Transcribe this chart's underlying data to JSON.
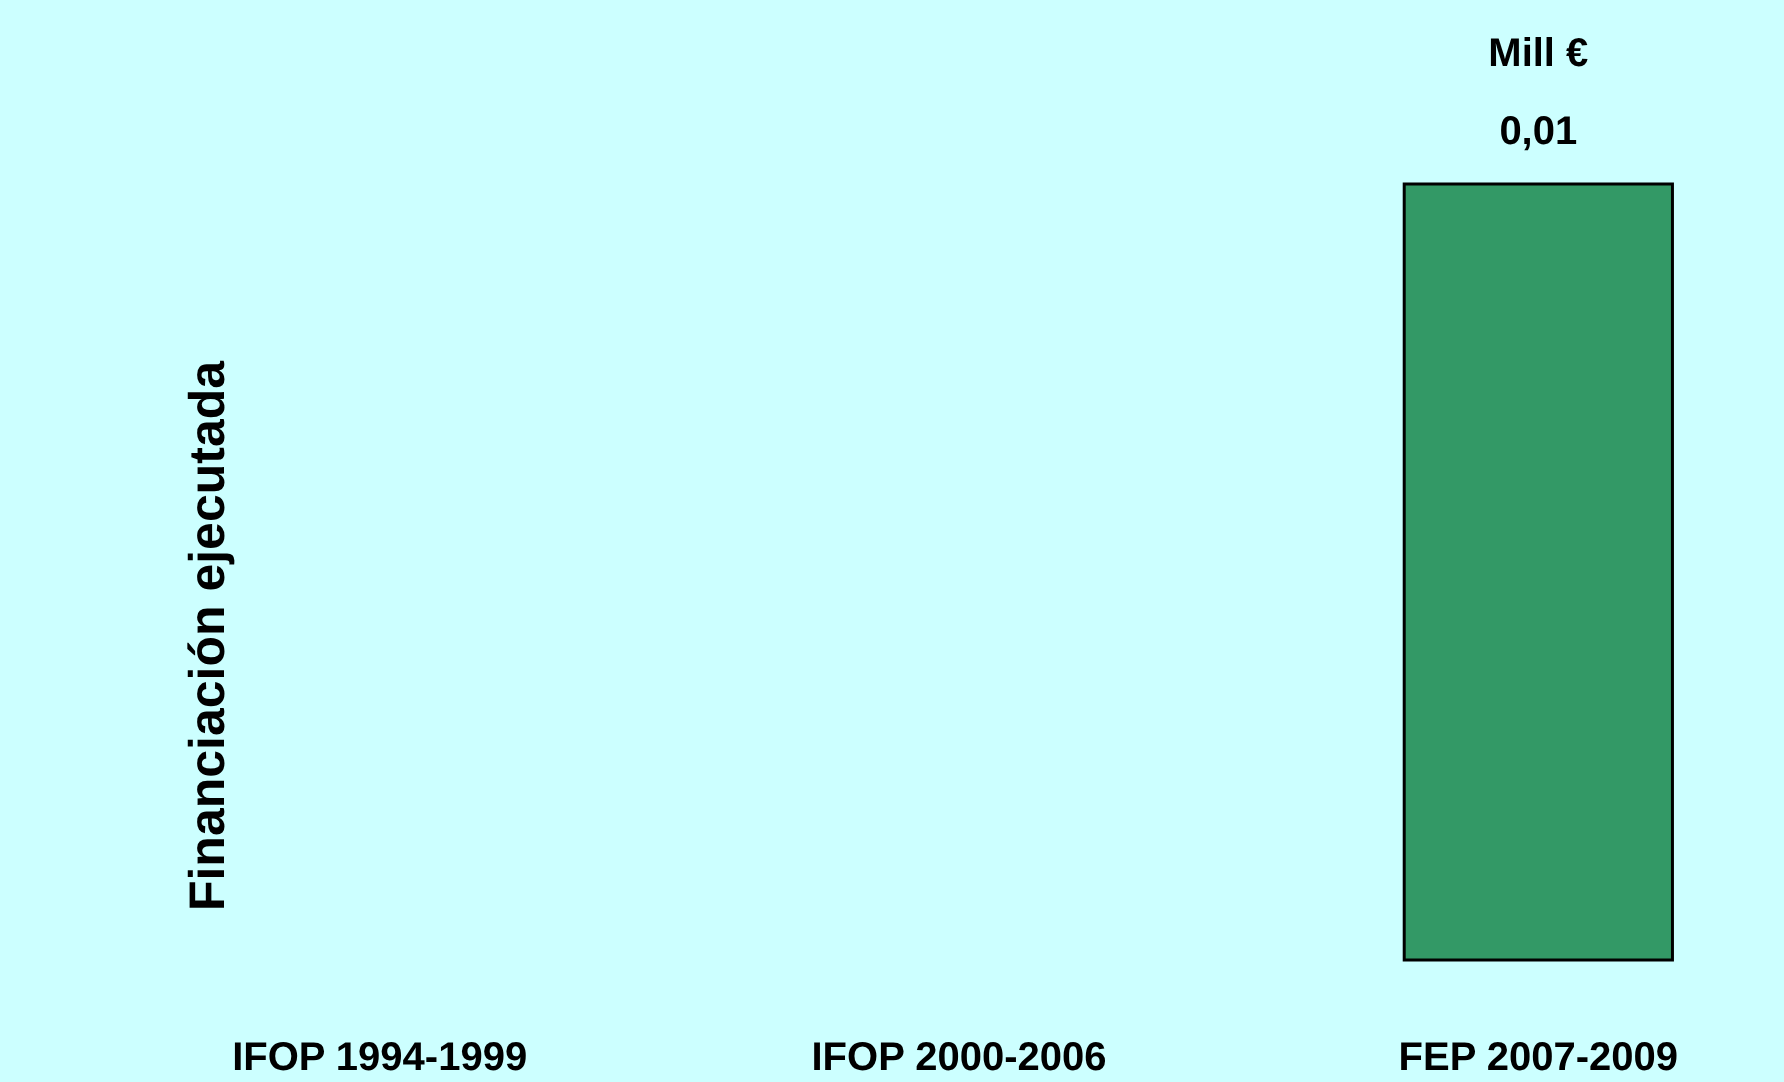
{
  "chart_data": {
    "type": "bar",
    "ylabel": "Financiación ejecutada",
    "categories": [
      "IFOP 1994-1999",
      "IFOP 2000-2006",
      "FEP 2007-2009"
    ],
    "values": [
      null,
      null,
      0.01
    ],
    "value_labels": [
      null,
      null,
      "0,01"
    ],
    "color": "#339966",
    "ylim": [
      0,
      0.01
    ],
    "annotations": [
      "Mill €"
    ]
  }
}
